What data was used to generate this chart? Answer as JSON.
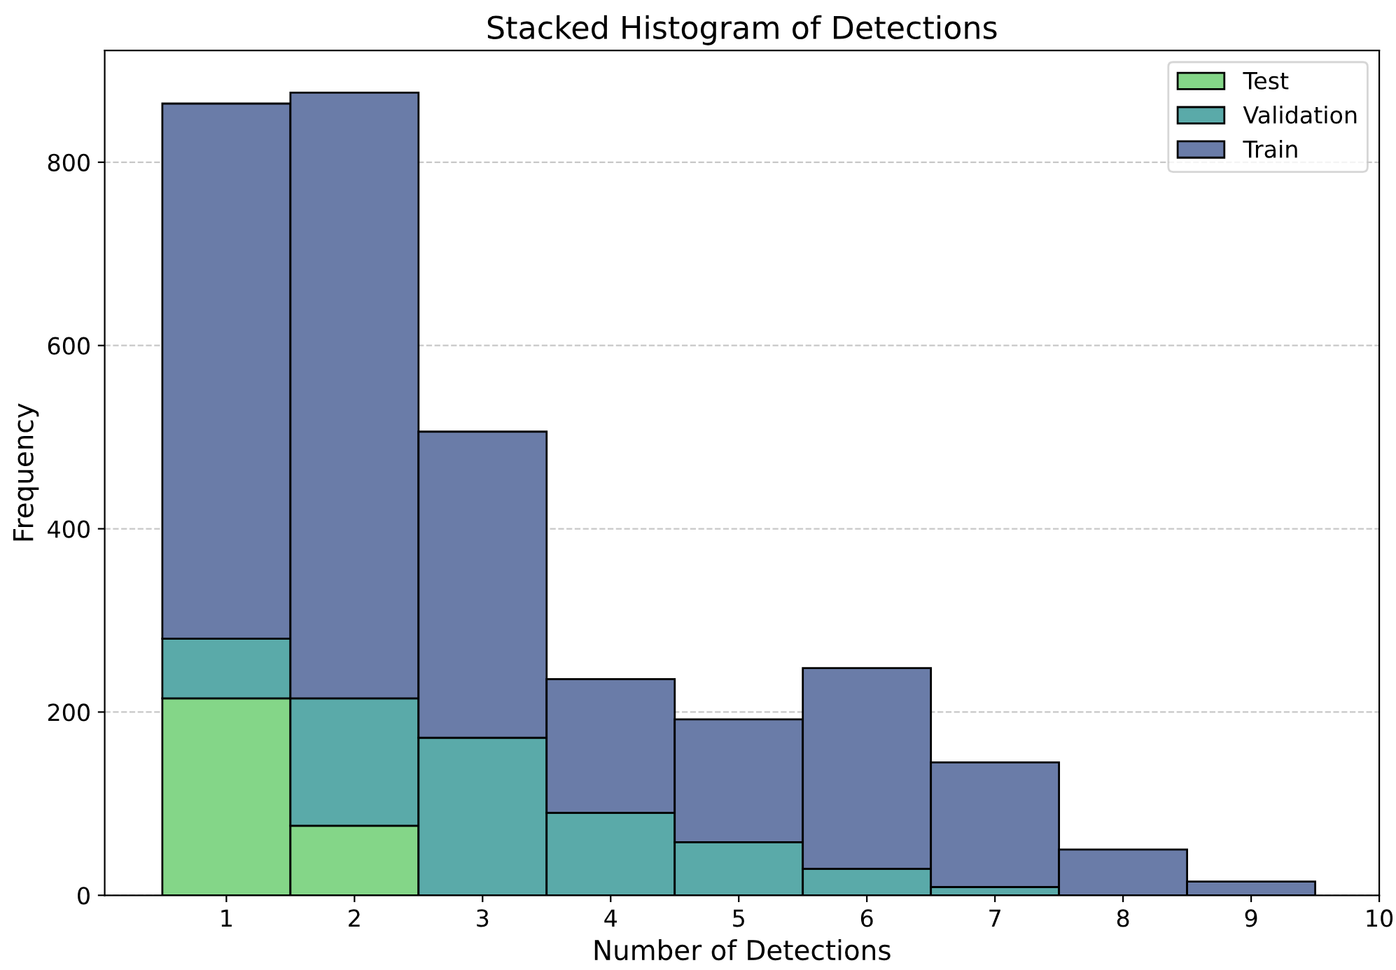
{
  "chart_data": {
    "type": "bar",
    "title": "Stacked Histogram of Detections",
    "xlabel": "Number of Detections",
    "ylabel": "Frequency",
    "x": [
      1,
      2,
      3,
      4,
      5,
      6,
      7,
      8,
      9
    ],
    "stacked": true,
    "series": [
      {
        "name": "Test",
        "color": "#84d688",
        "values": [
          215,
          76,
          0,
          0,
          0,
          0,
          0,
          0,
          0
        ]
      },
      {
        "name": "Validation",
        "color": "#5aaaa9",
        "values": [
          65,
          139,
          172,
          90,
          58,
          29,
          9,
          0,
          0
        ]
      },
      {
        "name": "Train",
        "color": "#6a7ca8",
        "values": [
          584,
          661,
          334,
          146,
          134,
          219,
          136,
          50,
          15
        ]
      }
    ],
    "xlim": [
      0.05,
      10
    ],
    "xticks": [
      1,
      2,
      3,
      4,
      5,
      6,
      7,
      8,
      9,
      10
    ],
    "ylim": [
      0,
      922
    ],
    "yticks": [
      0,
      200,
      400,
      600,
      800
    ],
    "grid": "y",
    "legend": "top right"
  }
}
